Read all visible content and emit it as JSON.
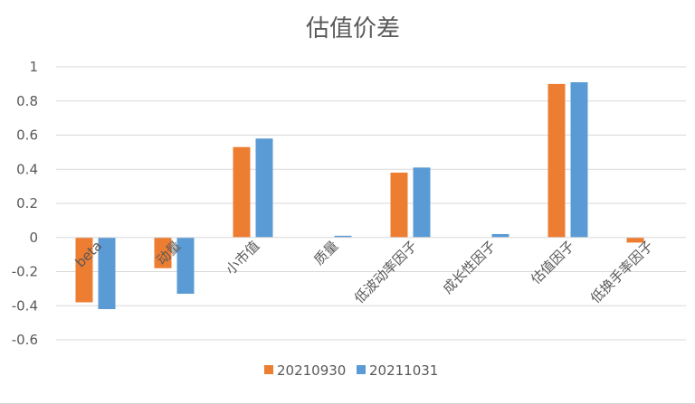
{
  "chart_data": {
    "type": "bar",
    "title": "估值价差",
    "categories": [
      "beta",
      "动量",
      "小市值",
      "质量",
      "低波动率因子",
      "成长性因子",
      "估值因子",
      "低换手率因子"
    ],
    "series": [
      {
        "name": "20210930",
        "color": "#ED7D31",
        "values": [
          -0.38,
          -0.18,
          0.53,
          0.0,
          0.38,
          0.0,
          0.9,
          -0.03
        ]
      },
      {
        "name": "20211031",
        "color": "#5B9BD5",
        "values": [
          -0.42,
          -0.33,
          0.58,
          0.01,
          0.41,
          0.02,
          0.91,
          0.0
        ]
      }
    ],
    "yticks": [
      "1",
      "0.8",
      "0.6",
      "0.4",
      "0.2",
      "0",
      "-0.2",
      "-0.4",
      "-0.6"
    ],
    "ylim": [
      -0.6,
      1
    ],
    "grid": true,
    "legend": "bottom"
  }
}
